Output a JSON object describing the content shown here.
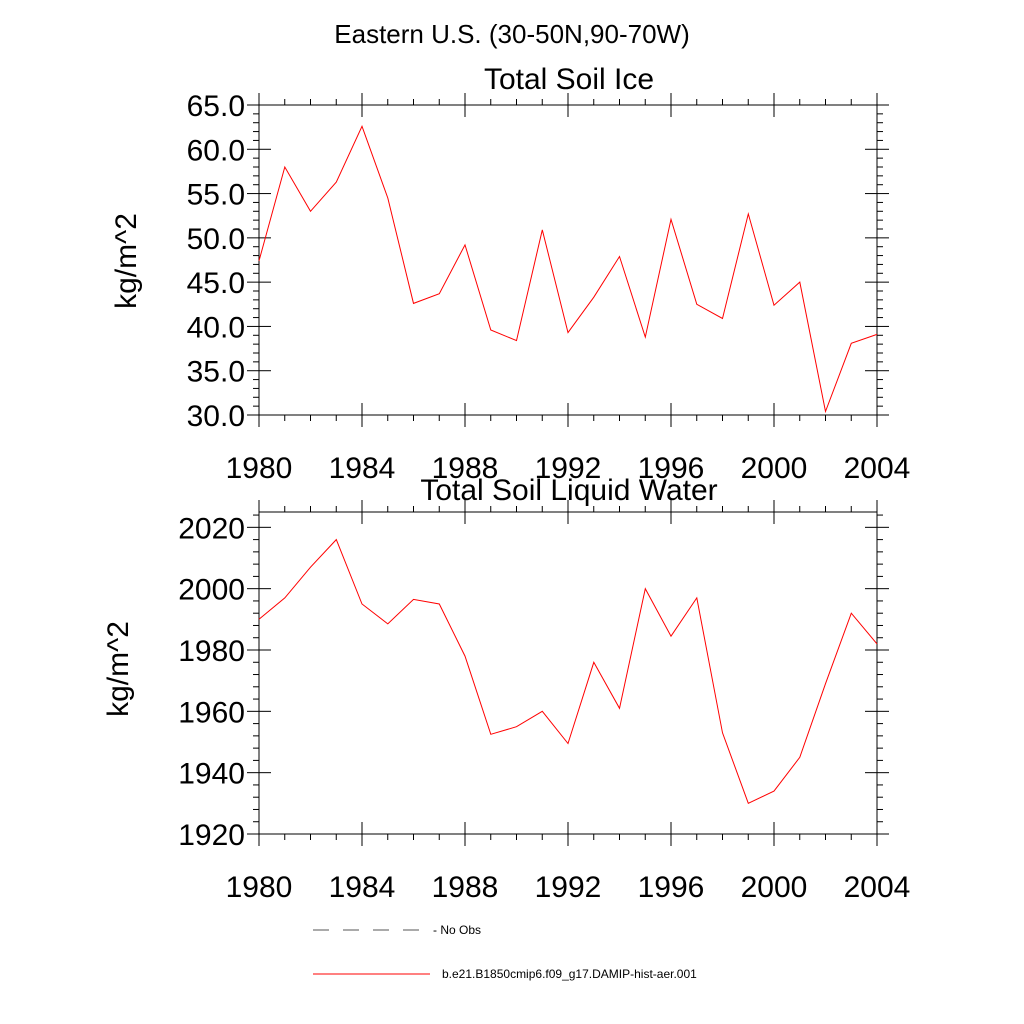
{
  "figure": {
    "suptitle": "Eastern U.S. (30-50N,90-70W)"
  },
  "chart_data": [
    {
      "type": "line",
      "title": "Total Soil Ice",
      "xlabel": "",
      "ylabel": "kg/m^2",
      "xlim": [
        1980,
        2004
      ],
      "ylim": [
        30,
        65
      ],
      "xticks": [
        1980,
        1984,
        1988,
        1992,
        1996,
        2000,
        2004
      ],
      "xtick_labels": [
        "1980",
        "1984",
        "1988",
        "1992",
        "1996",
        "2000",
        "2004"
      ],
      "yticks": [
        30,
        35,
        40,
        45,
        50,
        55,
        60,
        65
      ],
      "ytick_labels": [
        "30.0",
        "35.0",
        "40.0",
        "45.0",
        "50.0",
        "55.0",
        "60.0",
        "65.0"
      ],
      "grid": false,
      "x": [
        1980,
        1981,
        1982,
        1983,
        1984,
        1985,
        1986,
        1987,
        1988,
        1989,
        1990,
        1991,
        1992,
        1993,
        1994,
        1995,
        1996,
        1997,
        1998,
        1999,
        2000,
        2001,
        2002,
        2003,
        2004
      ],
      "series": [
        {
          "name": "b.e21.B1850cmip6.f09_g17.DAMIP-hist-aer.001",
          "color": "#ff0000",
          "values": [
            47.4,
            58.0,
            53.0,
            56.3,
            62.6,
            54.5,
            42.6,
            43.7,
            49.2,
            39.6,
            38.4,
            50.9,
            39.3,
            43.3,
            47.9,
            38.8,
            52.1,
            42.5,
            40.9,
            52.7,
            42.4,
            45.0,
            30.4,
            38.1,
            39.1
          ]
        }
      ]
    },
    {
      "type": "line",
      "title": "Total Soil Liquid Water",
      "xlabel": "",
      "ylabel": "kg/m^2",
      "xlim": [
        1980,
        2004
      ],
      "ylim": [
        1920,
        2025
      ],
      "xticks": [
        1980,
        1984,
        1988,
        1992,
        1996,
        2000,
        2004
      ],
      "xtick_labels": [
        "1980",
        "1984",
        "1988",
        "1992",
        "1996",
        "2000",
        "2004"
      ],
      "yticks": [
        1920,
        1940,
        1960,
        1980,
        2000,
        2020
      ],
      "ytick_labels": [
        "1920",
        "1940",
        "1960",
        "1980",
        "2000",
        "2020"
      ],
      "grid": false,
      "x": [
        1980,
        1981,
        1982,
        1983,
        1984,
        1985,
        1986,
        1987,
        1988,
        1989,
        1990,
        1991,
        1992,
        1993,
        1994,
        1995,
        1996,
        1997,
        1998,
        1999,
        2000,
        2001,
        2002,
        2003,
        2004
      ],
      "series": [
        {
          "name": "b.e21.B1850cmip6.f09_g17.DAMIP-hist-aer.001",
          "color": "#ff0000",
          "values": [
            1990,
            1997,
            2007,
            2016,
            1995,
            1988.5,
            1996.5,
            1995,
            1978,
            1952.5,
            1955,
            1960,
            1949.5,
            1976,
            1961,
            2000,
            1984.5,
            1997,
            1953,
            1930,
            1934,
            1945,
            1969,
            1992,
            1982
          ]
        }
      ]
    }
  ],
  "legend": {
    "placement": "bottom",
    "items": [
      {
        "label": "- No Obs",
        "style": "dashed",
        "color": "#555555"
      },
      {
        "label": "b.e21.B1850cmip6.f09_g17.DAMIP-hist-aer.001",
        "style": "solid",
        "color": "#ff0000"
      }
    ]
  }
}
